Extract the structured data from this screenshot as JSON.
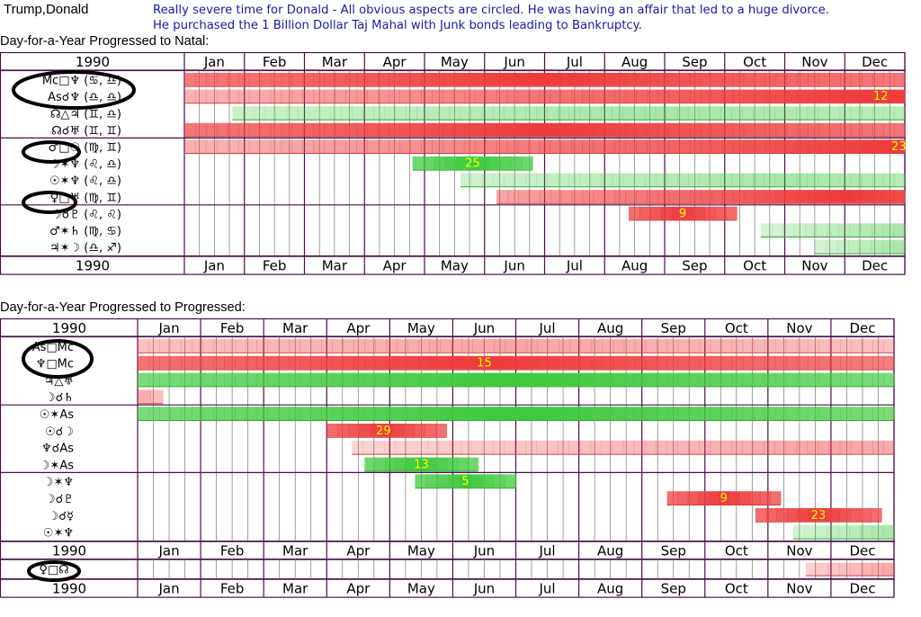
{
  "header": {
    "name": "Trump,Donald",
    "note_line1": "Really severe time for Donald - All obvious aspects are circled. He was having an affair that led to a huge divorce.",
    "note_line2": "He purchased the 1 Billion Dollar Taj Mahal with Junk bonds leading to Bankruptcy."
  },
  "colors": {
    "frame": "#4a0e4a",
    "grid_line": "#444444",
    "hard_aspect_red": "#ee3b3b",
    "soft_aspect_green": "#3ec93e",
    "peak_day_text": "#ffff00",
    "note_text": "#1a1aa6"
  },
  "chart_data": [
    {
      "type": "timeline",
      "title": "Day-for-a-Year Progressed to Natal:",
      "year": "1990",
      "months": [
        "Jan",
        "Feb",
        "Mar",
        "Apr",
        "May",
        "Jun",
        "Jul",
        "Aug",
        "Sep",
        "Oct",
        "Nov",
        "Dec"
      ],
      "groups": [
        {
          "rows": [
            {
              "label": "Mc□♆ (♋, ♎)",
              "circled": true,
              "bar": {
                "color": "red",
                "start": 0,
                "end": 12,
                "peak": 6
              }
            },
            {
              "label": "As☌♆ (♎, ♎)",
              "circled": true,
              "bar": {
                "color": "red",
                "start": 0,
                "end": 12,
                "peak": 11.6,
                "day": "12"
              }
            },
            {
              "label": "☊△♃ (♊, ♎)",
              "bar": {
                "color": "green",
                "light": true,
                "start": 0.8,
                "end": 12,
                "peak": 8
              }
            },
            {
              "label": "☊☌♅ (♊, ♊)",
              "bar": {
                "color": "red",
                "start": 0,
                "end": 12,
                "peak": 6
              }
            }
          ]
        },
        {
          "rows": [
            {
              "label": "♂□☉ (♍, ♊)",
              "circled": true,
              "bar": {
                "color": "red",
                "start": 0,
                "end": 12,
                "peak": 11.9,
                "day": "23"
              }
            },
            {
              "label": "☽✶♆ (♌, ♎)",
              "bar": {
                "color": "green",
                "start": 3.8,
                "end": 5.8,
                "peak": 4.8,
                "day": "25"
              }
            },
            {
              "label": "☉✶♆ (♌, ♎)",
              "bar": {
                "color": "green",
                "light": true,
                "start": 4.6,
                "end": 12,
                "peak": 10
              }
            },
            {
              "label": "♀□♅ (♍, ♊)",
              "circled": true,
              "bar": {
                "color": "red",
                "start": 5.2,
                "end": 12,
                "peak": 11
              }
            }
          ]
        },
        {
          "rows": [
            {
              "label": "☽☌♇ (♌, ♌)",
              "bar": {
                "color": "red",
                "start": 7.4,
                "end": 9.2,
                "peak": 8.3,
                "day": "9"
              }
            },
            {
              "label": "♂✶♄ (♍, ♋)",
              "bar": {
                "color": "green",
                "light": true,
                "start": 9.6,
                "end": 12,
                "peak": 12
              }
            },
            {
              "label": "♃✶☽ (♎, ♐)",
              "bar": {
                "color": "green",
                "light": true,
                "start": 10.5,
                "end": 12,
                "peak": 12
              }
            }
          ]
        }
      ]
    },
    {
      "type": "timeline",
      "title": "Day-for-a-Year Progressed to Progressed:",
      "year": "1990",
      "months": [
        "Jan",
        "Feb",
        "Mar",
        "Apr",
        "May",
        "Jun",
        "Jul",
        "Aug",
        "Sep",
        "Oct",
        "Nov",
        "Dec"
      ],
      "groups": [
        {
          "rows": [
            {
              "label": "As□Mc",
              "circled": true,
              "bar": {
                "color": "red",
                "light": true,
                "start": 0,
                "end": 12,
                "peak": 6
              }
            },
            {
              "label": "♆□Mc",
              "circled": true,
              "bar": {
                "color": "red",
                "start": 0,
                "end": 12,
                "peak": 5.5,
                "day": "15"
              }
            },
            {
              "label": "♃△♅",
              "bar": {
                "color": "green",
                "start": 0,
                "end": 12,
                "peak": 6
              }
            },
            {
              "label": "☽☌♄",
              "bar": {
                "color": "red",
                "light": true,
                "start": 0,
                "end": 0.4,
                "peak": 0
              }
            }
          ]
        },
        {
          "rows": [
            {
              "label": "☉✶As",
              "bar": {
                "color": "green",
                "start": 0,
                "end": 12,
                "peak": 6
              }
            },
            {
              "label": "☉☌☽",
              "bar": {
                "color": "red",
                "start": 3,
                "end": 4.9,
                "peak": 3.9,
                "day": "29"
              }
            },
            {
              "label": "♆☌As",
              "bar": {
                "color": "red",
                "light": true,
                "start": 3.4,
                "end": 12,
                "peak": 11
              }
            },
            {
              "label": "☽✶As",
              "bar": {
                "color": "green",
                "start": 3.6,
                "end": 5.4,
                "peak": 4.5,
                "day": "13"
              }
            }
          ]
        },
        {
          "rows": [
            {
              "label": "☽✶♆",
              "bar": {
                "color": "green",
                "start": 4.4,
                "end": 6,
                "peak": 5.2,
                "day": "5"
              }
            },
            {
              "label": "☽☌♇",
              "bar": {
                "color": "red",
                "start": 8.4,
                "end": 10.2,
                "peak": 9.3,
                "day": "9"
              }
            },
            {
              "label": "☽☌☿",
              "bar": {
                "color": "red",
                "start": 9.8,
                "end": 11.8,
                "peak": 10.8,
                "day": "23"
              }
            },
            {
              "label": "☉✶♆",
              "bar": {
                "color": "green",
                "light": true,
                "start": 10.4,
                "end": 12,
                "peak": 12
              }
            }
          ]
        }
      ],
      "extra_year": "1990",
      "extra_rows": [
        {
          "label": "♀□☊",
          "circled": true,
          "bar": {
            "color": "red",
            "light": true,
            "start": 10.6,
            "end": 12,
            "peak": 12
          }
        }
      ]
    }
  ]
}
